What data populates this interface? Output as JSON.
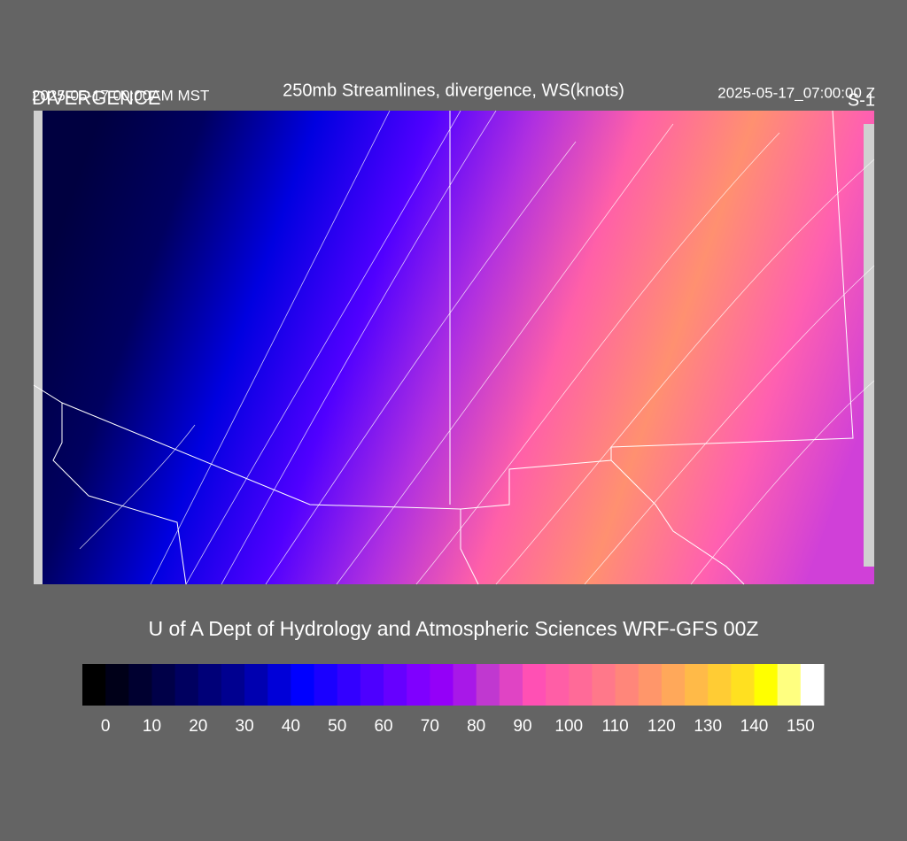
{
  "header": {
    "left_time": "2025-05-17 00:00AM MST",
    "left_label": "DIVERGENCE",
    "title": "250mb Streamlines, divergence, WS(knots)",
    "right_time": "2025-05-17_07:00:00 Z",
    "right_label": "S-1"
  },
  "footer": {
    "credit": "U of A Dept of Hydrology and Atmospheric Sciences WRF-GFS 00Z"
  },
  "colorbar": {
    "limits": [
      -5,
      155
    ],
    "colors": [
      "#000000",
      "#000018",
      "#000030",
      "#000048",
      "#000060",
      "#000078",
      "#000090",
      "#0000b0",
      "#0000d8",
      "#0000ff",
      "#1a00ff",
      "#3300ff",
      "#4d00ff",
      "#6600ff",
      "#7f00ff",
      "#9400f8",
      "#a818e8",
      "#c038d0",
      "#e044c4",
      "#ff50b4",
      "#ff5ea6",
      "#ff6a98",
      "#ff788a",
      "#ff867a",
      "#ff966a",
      "#ffa85a",
      "#ffba48",
      "#ffcc34",
      "#ffe020",
      "#ffff00",
      "#ffff80",
      "#ffffff"
    ],
    "ticks": [
      0,
      10,
      20,
      30,
      40,
      50,
      60,
      70,
      80,
      90,
      100,
      110,
      120,
      130,
      140,
      150
    ]
  }
}
